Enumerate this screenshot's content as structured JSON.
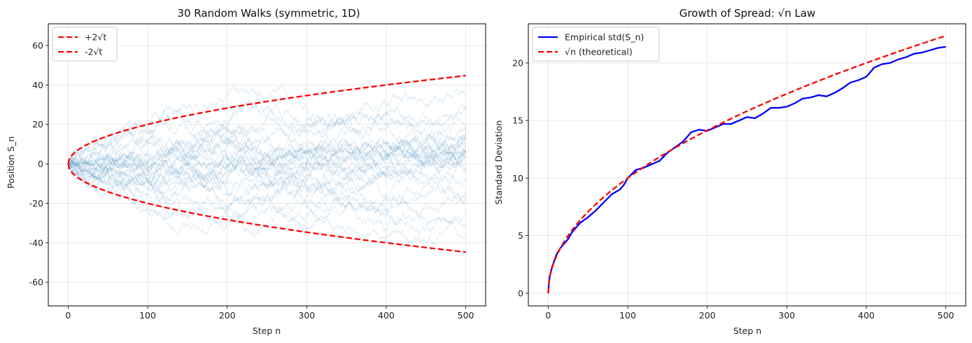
{
  "chart_data": [
    {
      "type": "line",
      "title": "30 Random Walks (symmetric, 1D)",
      "xlabel": "Step n",
      "ylabel": "Position S_n",
      "xlim": [
        -25,
        525
      ],
      "ylim": [
        -72,
        71
      ],
      "xticks": [
        0,
        100,
        200,
        300,
        400,
        500
      ],
      "yticks": [
        -60,
        -40,
        -20,
        0,
        20,
        40,
        60
      ],
      "grid": true,
      "legend_position": "top-left",
      "walks": {
        "count": 30,
        "steps": 500,
        "color": "#1f77b4",
        "opacity": 0.16,
        "seed": 42
      },
      "series": [
        {
          "name": "+2√t",
          "function": "2*sqrt(t)",
          "color": "#ff0000",
          "style": "dashed"
        },
        {
          "name": "-2√t",
          "function": "-2*sqrt(t)",
          "color": "#ff0000",
          "style": "dashed"
        }
      ]
    },
    {
      "type": "line",
      "title": "Growth of Spread: √n Law",
      "xlabel": "Step n",
      "ylabel": "Standard Deviation",
      "xlim": [
        -25,
        525
      ],
      "ylim": [
        -1.1,
        23.4
      ],
      "xticks": [
        0,
        100,
        200,
        300,
        400,
        500
      ],
      "yticks": [
        0,
        5,
        10,
        15,
        20
      ],
      "grid": true,
      "legend_position": "top-left",
      "series": [
        {
          "name": "Empirical std(S_n)",
          "color": "#0000ff",
          "style": "solid",
          "x": [
            0,
            1,
            2,
            5,
            10,
            15,
            20,
            25,
            30,
            35,
            40,
            50,
            60,
            70,
            80,
            90,
            95,
            100,
            110,
            120,
            130,
            140,
            150,
            160,
            170,
            180,
            190,
            200,
            210,
            220,
            230,
            240,
            250,
            260,
            270,
            280,
            290,
            300,
            310,
            320,
            330,
            340,
            350,
            360,
            370,
            380,
            390,
            400,
            410,
            420,
            430,
            440,
            450,
            460,
            470,
            480,
            490,
            500
          ],
          "values": [
            0,
            1.0,
            1.5,
            2.3,
            3.3,
            3.9,
            4.3,
            4.7,
            5.3,
            5.7,
            6.1,
            6.6,
            7.2,
            7.9,
            8.6,
            9.0,
            9.4,
            10.0,
            10.7,
            10.9,
            11.2,
            11.5,
            12.2,
            12.7,
            13.2,
            14.0,
            14.2,
            14.1,
            14.4,
            14.7,
            14.7,
            15.0,
            15.3,
            15.2,
            15.6,
            16.1,
            16.1,
            16.2,
            16.5,
            16.9,
            17.0,
            17.2,
            17.1,
            17.4,
            17.8,
            18.3,
            18.5,
            18.8,
            19.6,
            19.9,
            20.0,
            20.3,
            20.5,
            20.8,
            20.9,
            21.1,
            21.3,
            21.4
          ]
        },
        {
          "name": "√n (theoretical)",
          "function": "sqrt(n)",
          "color": "#ff0000",
          "style": "dashed"
        }
      ]
    }
  ]
}
